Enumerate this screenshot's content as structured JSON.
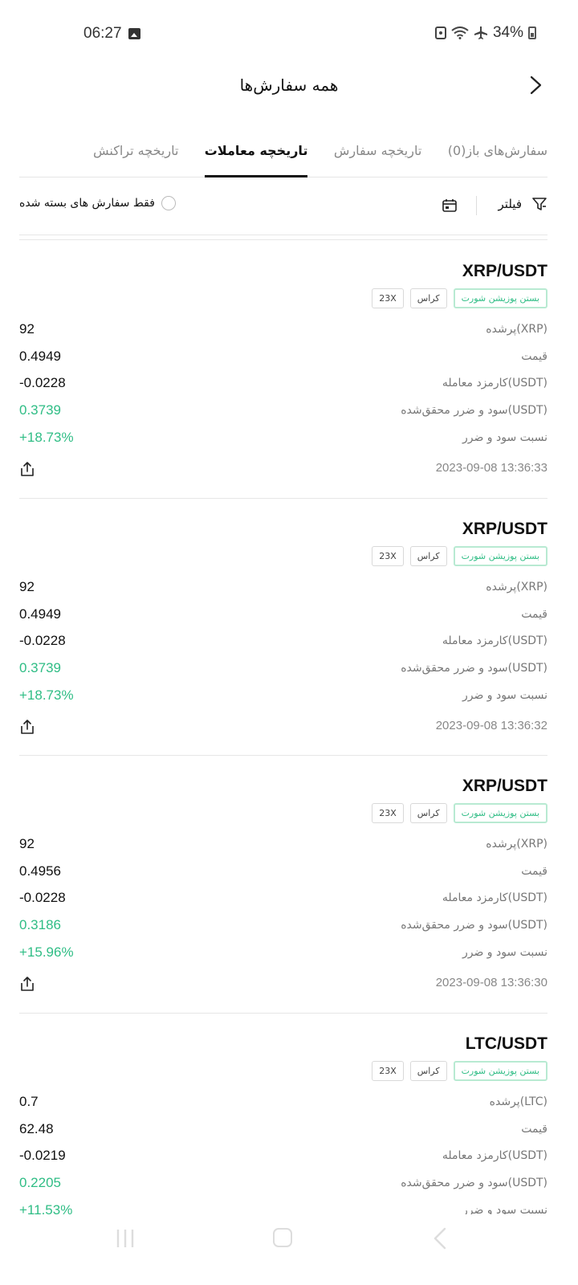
{
  "status_bar": {
    "time": "06:27",
    "battery": "34%"
  },
  "header": {
    "title": "همه سفارش‌ها"
  },
  "tabs": [
    {
      "label": "سفارش‌های باز(0)",
      "active": false
    },
    {
      "label": "تاریخچه سفارش",
      "active": false
    },
    {
      "label": "تاریخچه معاملات",
      "active": true
    },
    {
      "label": "تاریخچه تراکنش",
      "active": false
    }
  ],
  "toolbar": {
    "filter_label": "فیلتر",
    "closed_only_label": "فقط سفارش های بسته شده"
  },
  "labels": {
    "fee": "کارمزد معامله(USDT)",
    "price": "قیمت",
    "realized_pnl": "سود و ضرر محقق‌شده(USDT)",
    "pnl_ratio": "نسبت سود و ضرر"
  },
  "trades": [
    {
      "pair": "XRP/USDT",
      "tag_side": "بستن پوزیشن شورت",
      "tag_mode": "کراس",
      "tag_leverage": "23X",
      "filled_label": "پرشده(XRP)",
      "filled": "92",
      "price": "0.4949",
      "fee": "-0.0228",
      "realized_pnl": "0.3739",
      "pnl_ratio": "+18.73%",
      "timestamp": "2023-09-08 13:36:33"
    },
    {
      "pair": "XRP/USDT",
      "tag_side": "بستن پوزیشن شورت",
      "tag_mode": "کراس",
      "tag_leverage": "23X",
      "filled_label": "پرشده(XRP)",
      "filled": "92",
      "price": "0.4949",
      "fee": "-0.0228",
      "realized_pnl": "0.3739",
      "pnl_ratio": "+18.73%",
      "timestamp": "2023-09-08 13:36:32"
    },
    {
      "pair": "XRP/USDT",
      "tag_side": "بستن پوزیشن شورت",
      "tag_mode": "کراس",
      "tag_leverage": "23X",
      "filled_label": "پرشده(XRP)",
      "filled": "92",
      "price": "0.4956",
      "fee": "-0.0228",
      "realized_pnl": "0.3186",
      "pnl_ratio": "+15.96%",
      "timestamp": "2023-09-08 13:36:30"
    },
    {
      "pair": "LTC/USDT",
      "tag_side": "بستن پوزیشن شورت",
      "tag_mode": "کراس",
      "tag_leverage": "23X",
      "filled_label": "پرشده(LTC)",
      "filled": "0.7",
      "price": "62.48",
      "fee": "-0.0219",
      "realized_pnl": "0.2205",
      "pnl_ratio": "+11.53%",
      "timestamp": ""
    }
  ],
  "colors": {
    "profit": "#2fbd85",
    "muted": "#888888",
    "text": "#111111"
  }
}
